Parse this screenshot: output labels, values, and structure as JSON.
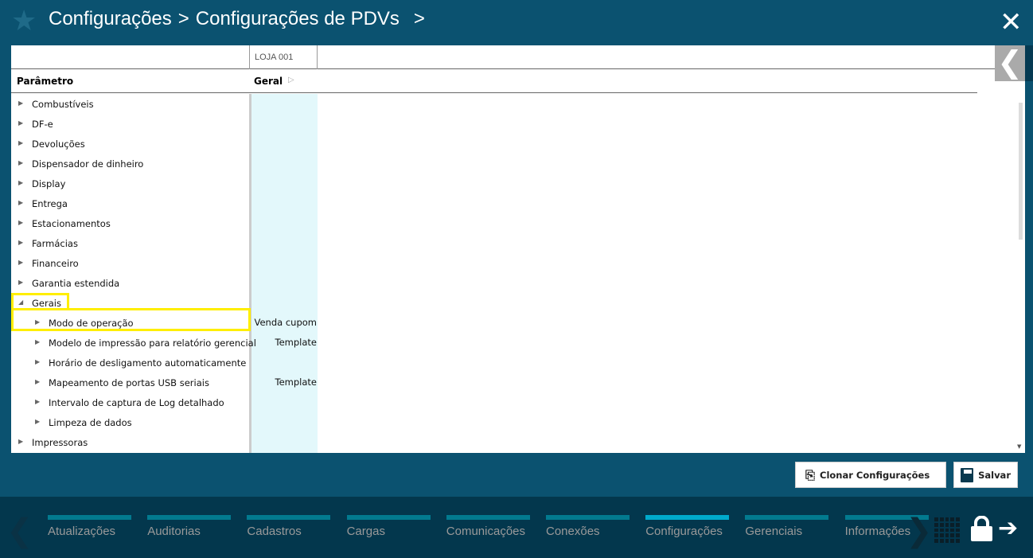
{
  "header": {
    "breadcrumbs": [
      "Configurações",
      "Configurações de PDVs"
    ],
    "separator": ">"
  },
  "grid": {
    "store_column": "LOJA 001",
    "param_header": "Parâmetro",
    "group_header": "Geral",
    "rows": [
      {
        "label": "Combustíveis",
        "level": 0,
        "expanded": false,
        "value": ""
      },
      {
        "label": "DF-e",
        "level": 0,
        "expanded": false,
        "value": ""
      },
      {
        "label": "Devoluções",
        "level": 0,
        "expanded": false,
        "value": ""
      },
      {
        "label": "Dispensador de dinheiro",
        "level": 0,
        "expanded": false,
        "value": ""
      },
      {
        "label": "Display",
        "level": 0,
        "expanded": false,
        "value": ""
      },
      {
        "label": "Entrega",
        "level": 0,
        "expanded": false,
        "value": ""
      },
      {
        "label": "Estacionamentos",
        "level": 0,
        "expanded": false,
        "value": ""
      },
      {
        "label": "Farmácias",
        "level": 0,
        "expanded": false,
        "value": ""
      },
      {
        "label": "Financeiro",
        "level": 0,
        "expanded": false,
        "value": ""
      },
      {
        "label": "Garantia estendida",
        "level": 0,
        "expanded": false,
        "value": ""
      },
      {
        "label": "Gerais",
        "level": 0,
        "expanded": true,
        "value": ""
      },
      {
        "label": "Modo de operação",
        "level": 1,
        "expanded": false,
        "value": "Venda cupom"
      },
      {
        "label": "Modelo de impressão para relatório gerencial",
        "level": 1,
        "expanded": false,
        "value": "Template"
      },
      {
        "label": "Horário de desligamento automaticamente",
        "level": 1,
        "expanded": false,
        "value": ""
      },
      {
        "label": "Mapeamento de portas USB seriais",
        "level": 1,
        "expanded": false,
        "value": "Template"
      },
      {
        "label": "Intervalo de captura de Log detalhado",
        "level": 1,
        "expanded": false,
        "value": ""
      },
      {
        "label": "Limpeza de dados",
        "level": 1,
        "expanded": false,
        "value": ""
      },
      {
        "label": "Impressoras",
        "level": 0,
        "expanded": false,
        "value": ""
      }
    ]
  },
  "actions": {
    "clone": "Clonar Configurações",
    "save": "Salvar"
  },
  "footer": {
    "tabs": [
      "Atualizações",
      "Auditorias",
      "Cadastros",
      "Cargas",
      "Comunicações",
      "Conexões",
      "Configurações",
      "Gerenciais",
      "Informações"
    ],
    "active": "Configurações"
  },
  "colors": {
    "highlight": "#ffee00",
    "header_bg": "#0b5270",
    "footer_bg": "#03374d",
    "tab_bar": "#027a8f",
    "tab_active": "#00aacc"
  }
}
